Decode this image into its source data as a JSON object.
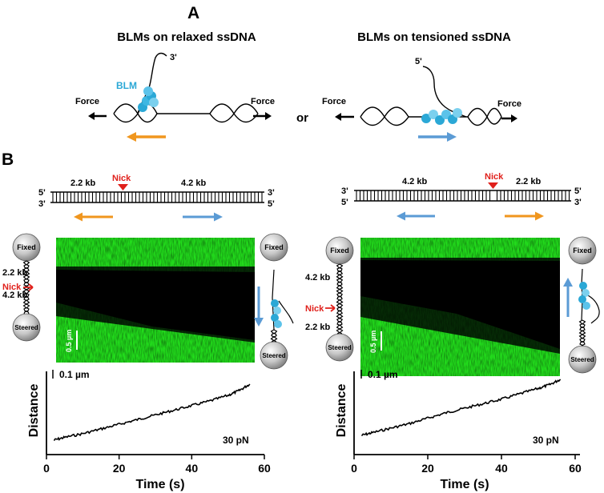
{
  "panel_a": {
    "label": "A",
    "left_title": "BLMs on relaxed ssDNA",
    "right_title": "BLMs on tensioned ssDNA",
    "left_end_label": "3'",
    "right_end_label": "5'",
    "blm_label": "BLM",
    "force_label": "Force",
    "or_label": "or"
  },
  "panel_b": {
    "label": "B",
    "left": {
      "prime_left_top": "5'",
      "prime_left_bottom": "3'",
      "prime_right_top": "3'",
      "prime_right_bottom": "5'",
      "segment_1": "2.2 kb",
      "segment_2": "4.2 kb",
      "nick": "Nick",
      "bead_top": "Fixed",
      "bead_bottom": "Steered",
      "tether_top": "2.2 kb",
      "tether_bottom": "4.2 kb",
      "tether_nick": "Nick",
      "kymo_scale": "0.5 µm",
      "trace_scale": "0.1 µm",
      "force": "30 pN",
      "xlabel": "Time (s)",
      "ylabel": "Distance",
      "xticks": [
        "0",
        "20",
        "40",
        "60"
      ]
    },
    "right": {
      "prime_left_top": "3'",
      "prime_left_bottom": "5'",
      "prime_right_top": "5'",
      "prime_right_bottom": "3'",
      "segment_1": "4.2 kb",
      "segment_2": "2.2 kb",
      "nick": "Nick",
      "bead_top": "Fixed",
      "bead_bottom": "Steered",
      "tether_top": "4.2 kb",
      "tether_bottom": "2.2 kb",
      "tether_nick": "Nick",
      "kymo_scale": "0.5 µm",
      "trace_scale": "0.1 µm",
      "force": "30 pN",
      "xlabel": "Time (s)",
      "ylabel": "Distance",
      "xticks": [
        "0",
        "20",
        "40",
        "60"
      ]
    }
  },
  "colors": {
    "orange_arrow": "#f0961e",
    "blue_arrow": "#5b9bd5",
    "blm": "#2ba8d6",
    "nick": "#e0201b",
    "kymo_green": "#22dd1c"
  },
  "chart_data": [
    {
      "type": "line",
      "title": "",
      "xlabel": "Time (s)",
      "ylabel": "Distance",
      "xlim": [
        0,
        60
      ],
      "xticks": [
        0,
        20,
        40,
        60
      ],
      "annotation": "30 pN",
      "scale_bar": "0.1 µm",
      "series": [
        {
          "x": [
            2,
            5,
            10,
            15,
            20,
            25,
            30,
            35,
            40,
            45,
            50,
            53,
            56
          ],
          "y": [
            0.0,
            0.03,
            0.07,
            0.12,
            0.17,
            0.22,
            0.27,
            0.32,
            0.37,
            0.42,
            0.48,
            0.53,
            0.6
          ]
        }
      ]
    },
    {
      "type": "line",
      "title": "",
      "xlabel": "Time (s)",
      "ylabel": "Distance",
      "xlim": [
        0,
        60
      ],
      "xticks": [
        0,
        20,
        40,
        60
      ],
      "annotation": "30 pN",
      "scale_bar": "0.1 µm",
      "series": [
        {
          "x": [
            2,
            5,
            10,
            15,
            20,
            25,
            30,
            35,
            40,
            45,
            50,
            53,
            56
          ],
          "y": [
            0.0,
            0.03,
            0.08,
            0.13,
            0.19,
            0.25,
            0.3,
            0.35,
            0.4,
            0.46,
            0.52,
            0.56,
            0.62
          ]
        }
      ]
    }
  ]
}
